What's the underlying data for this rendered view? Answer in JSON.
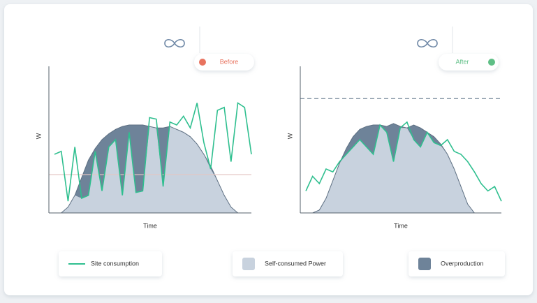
{
  "chart_data": [
    {
      "type": "area-line",
      "annotation": "Before",
      "badge_color": "#e8735f",
      "ylabel": "W",
      "xlabel": "Time",
      "ylim": [
        0,
        100
      ],
      "reference_line": 26,
      "reference_style": "solid",
      "series": [
        {
          "name": "Site consumption",
          "color": "#2fbf8f",
          "values": [
            40,
            42,
            8,
            45,
            10,
            12,
            42,
            15,
            45,
            50,
            12,
            55,
            14,
            15,
            65,
            64,
            18,
            62,
            60,
            66,
            58,
            75,
            48,
            30,
            70,
            72,
            35,
            75,
            72,
            40
          ]
        },
        {
          "name": "Self-consumed Power",
          "color": "#c8d2de"
        },
        {
          "name": "Overproduction",
          "color": "#6e8399",
          "values": [
            0,
            0,
            4,
            12,
            24,
            36,
            44,
            50,
            54,
            57,
            59,
            60,
            60,
            60,
            59,
            58,
            58,
            59,
            57,
            55,
            52,
            47,
            40,
            32,
            22,
            12,
            4,
            0,
            0,
            0
          ]
        }
      ]
    },
    {
      "type": "area-line",
      "annotation": "After",
      "badge_color": "#5fbf86",
      "ylabel": "W",
      "xlabel": "Time",
      "ylim": [
        0,
        100
      ],
      "reference_line": 78,
      "reference_style": "dashed",
      "series": [
        {
          "color": "#2fbf8f",
          "values": [
            15,
            25,
            20,
            30,
            28,
            35,
            40,
            45,
            50,
            45,
            40,
            60,
            55,
            35,
            58,
            62,
            50,
            45,
            55,
            48,
            46,
            50,
            42,
            40,
            35,
            28,
            20,
            15,
            18,
            8
          ]
        },
        {
          "color": "#c8d2de"
        },
        {
          "color": "#6e8399",
          "values": [
            0,
            0,
            2,
            10,
            22,
            34,
            44,
            52,
            57,
            59,
            60,
            60,
            59,
            61,
            59,
            58,
            60,
            58,
            55,
            52,
            47,
            40,
            30,
            18,
            6,
            0,
            0,
            0,
            0,
            0
          ]
        }
      ]
    }
  ]
}
